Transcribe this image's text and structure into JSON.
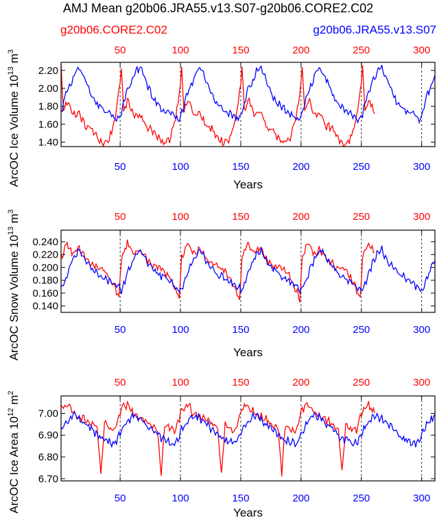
{
  "figure": {
    "title": "AMJ Mean g20b06.JRA55.v13.S07-g20b06.CORE2.C02",
    "legend_left": "g20b06.CORE2.C02",
    "legend_right": "g20b06.JRA55.v13.S07"
  },
  "colors": {
    "red_series": "#ff0000",
    "blue_series": "#0000ff",
    "axis": "#000000"
  },
  "chart_data": [
    {
      "type": "line",
      "title": "",
      "xlabel": "Years",
      "ylabel": "ArcOC Ice Volume",
      "ylabel_unit": "10",
      "ylabel_exp": "13",
      "ylabel_tail": " m",
      "ylabel_pow": "3",
      "xlim": [
        1,
        311
      ],
      "ylim": [
        1.35,
        2.29
      ],
      "yticks": [
        1.4,
        1.6,
        1.8,
        2.0,
        2.2
      ],
      "ytick_labels": [
        "1.40",
        "1.60",
        "1.80",
        "2.00",
        "2.20"
      ],
      "bottom_xticks": [
        50,
        100,
        150,
        200,
        250,
        300
      ],
      "bottom_xtick_labels": [
        "50",
        "100",
        "150",
        "200",
        "250",
        "300"
      ],
      "top_xticks": [
        50,
        100,
        150,
        200,
        250,
        300
      ],
      "top_xtick_labels": [
        "50",
        "100",
        "150",
        "200",
        "250",
        "300"
      ],
      "grid_vertical_dashed": [
        50,
        100,
        150,
        200,
        250,
        300
      ],
      "series": [
        {
          "name": "g20b06.CORE2.C02",
          "color_key": "red_series",
          "x_start": 1,
          "x_end": 261,
          "cycle_keypoints": [
            [
              0,
              2.24
            ],
            [
              2,
              1.75
            ],
            [
              6,
              1.87
            ],
            [
              10,
              1.7
            ],
            [
              15,
              1.72
            ],
            [
              20,
              1.58
            ],
            [
              25,
              1.55
            ],
            [
              30,
              1.45
            ],
            [
              35,
              1.38
            ],
            [
              40,
              1.43
            ],
            [
              45,
              1.68
            ],
            [
              48,
              1.95
            ],
            [
              50,
              2.19
            ]
          ]
        },
        {
          "name": "g20b06.JRA55.v13.S07",
          "color_key": "blue_series",
          "x_start": 1,
          "x_end": 311,
          "cycle_keypoints": [
            [
              0,
              1.72
            ],
            [
              4,
              1.95
            ],
            [
              8,
              2.05
            ],
            [
              12,
              2.19
            ],
            [
              16,
              2.22
            ],
            [
              20,
              2.1
            ],
            [
              24,
              1.96
            ],
            [
              28,
              1.85
            ],
            [
              32,
              1.8
            ],
            [
              36,
              1.75
            ],
            [
              40,
              1.72
            ],
            [
              44,
              1.68
            ],
            [
              47,
              1.66
            ],
            [
              50,
              1.72
            ]
          ]
        }
      ]
    },
    {
      "type": "line",
      "title": "",
      "xlabel": "Years",
      "ylabel": "ArcOC Snow Volume",
      "ylabel_unit": "10",
      "ylabel_exp": "13",
      "ylabel_tail": " m",
      "ylabel_pow": "3",
      "xlim": [
        1,
        311
      ],
      "ylim": [
        0.13,
        0.258
      ],
      "yticks": [
        0.14,
        0.16,
        0.18,
        0.2,
        0.22,
        0.24
      ],
      "ytick_labels": [
        "0.140",
        "0.160",
        "0.180",
        "0.200",
        "0.220",
        "0.240"
      ],
      "bottom_xticks": [
        50,
        100,
        150,
        200,
        250,
        300
      ],
      "bottom_xtick_labels": [
        "50",
        "100",
        "150",
        "200",
        "250",
        "300"
      ],
      "top_xticks": [
        50,
        100,
        150,
        200,
        250,
        300
      ],
      "top_xtick_labels": [
        "50",
        "100",
        "150",
        "200",
        "250",
        "300"
      ],
      "grid_vertical_dashed": [
        50,
        100,
        150,
        200,
        250,
        300
      ],
      "series": [
        {
          "name": "g20b06.CORE2.C02",
          "color_key": "red_series",
          "x_start": 1,
          "x_end": 261,
          "cycle_keypoints": [
            [
              0,
              0.215
            ],
            [
              5,
              0.238
            ],
            [
              10,
              0.222
            ],
            [
              15,
              0.228
            ],
            [
              20,
              0.215
            ],
            [
              25,
              0.205
            ],
            [
              30,
              0.2
            ],
            [
              35,
              0.195
            ],
            [
              40,
              0.185
            ],
            [
              45,
              0.165
            ],
            [
              48,
              0.15
            ],
            [
              50,
              0.215
            ]
          ]
        },
        {
          "name": "g20b06.JRA55.v13.S07",
          "color_key": "blue_series",
          "x_start": 1,
          "x_end": 311,
          "cycle_keypoints": [
            [
              0,
              0.165
            ],
            [
              4,
              0.185
            ],
            [
              8,
              0.205
            ],
            [
              12,
              0.22
            ],
            [
              16,
              0.228
            ],
            [
              20,
              0.212
            ],
            [
              25,
              0.2
            ],
            [
              30,
              0.19
            ],
            [
              35,
              0.185
            ],
            [
              40,
              0.178
            ],
            [
              45,
              0.17
            ],
            [
              50,
              0.165
            ]
          ]
        }
      ]
    },
    {
      "type": "line",
      "title": "",
      "xlabel": "Years",
      "ylabel": "ArcOC Ice Area",
      "ylabel_unit": "10",
      "ylabel_exp": "12",
      "ylabel_tail": " m",
      "ylabel_pow": "2",
      "xlim": [
        1,
        311
      ],
      "ylim": [
        6.69,
        7.08
      ],
      "yticks": [
        6.7,
        6.8,
        6.9,
        7.0
      ],
      "ytick_labels": [
        "6.70",
        "6.80",
        "6.90",
        "7.00"
      ],
      "bottom_xticks": [
        50,
        100,
        150,
        200,
        250,
        300
      ],
      "bottom_xtick_labels": [
        "50",
        "100",
        "150",
        "200",
        "250",
        "300"
      ],
      "top_xticks": [
        50,
        100,
        150,
        200,
        250,
        300
      ],
      "top_xtick_labels": [
        "50",
        "100",
        "150",
        "200",
        "250",
        "300"
      ],
      "grid_vertical_dashed": [
        50,
        100,
        150,
        200,
        250,
        300
      ],
      "series": [
        {
          "name": "g20b06.CORE2.C02",
          "color_key": "red_series",
          "x_start": 1,
          "x_end": 261,
          "cycle_keypoints": [
            [
              0,
              7.02
            ],
            [
              5,
              7.04
            ],
            [
              10,
              7.0
            ],
            [
              15,
              6.99
            ],
            [
              20,
              6.97
            ],
            [
              25,
              6.95
            ],
            [
              30,
              6.93
            ],
            [
              33,
              6.72
            ],
            [
              36,
              6.95
            ],
            [
              40,
              6.93
            ],
            [
              45,
              6.92
            ],
            [
              50,
              7.02
            ]
          ]
        },
        {
          "name": "g20b06.JRA55.v13.S07",
          "color_key": "blue_series",
          "x_start": 1,
          "x_end": 311,
          "cycle_keypoints": [
            [
              0,
              6.92
            ],
            [
              5,
              6.96
            ],
            [
              10,
              6.99
            ],
            [
              15,
              6.98
            ],
            [
              20,
              6.95
            ],
            [
              25,
              6.93
            ],
            [
              30,
              6.9
            ],
            [
              35,
              6.88
            ],
            [
              40,
              6.87
            ],
            [
              45,
              6.86
            ],
            [
              50,
              6.92
            ]
          ]
        }
      ]
    }
  ]
}
